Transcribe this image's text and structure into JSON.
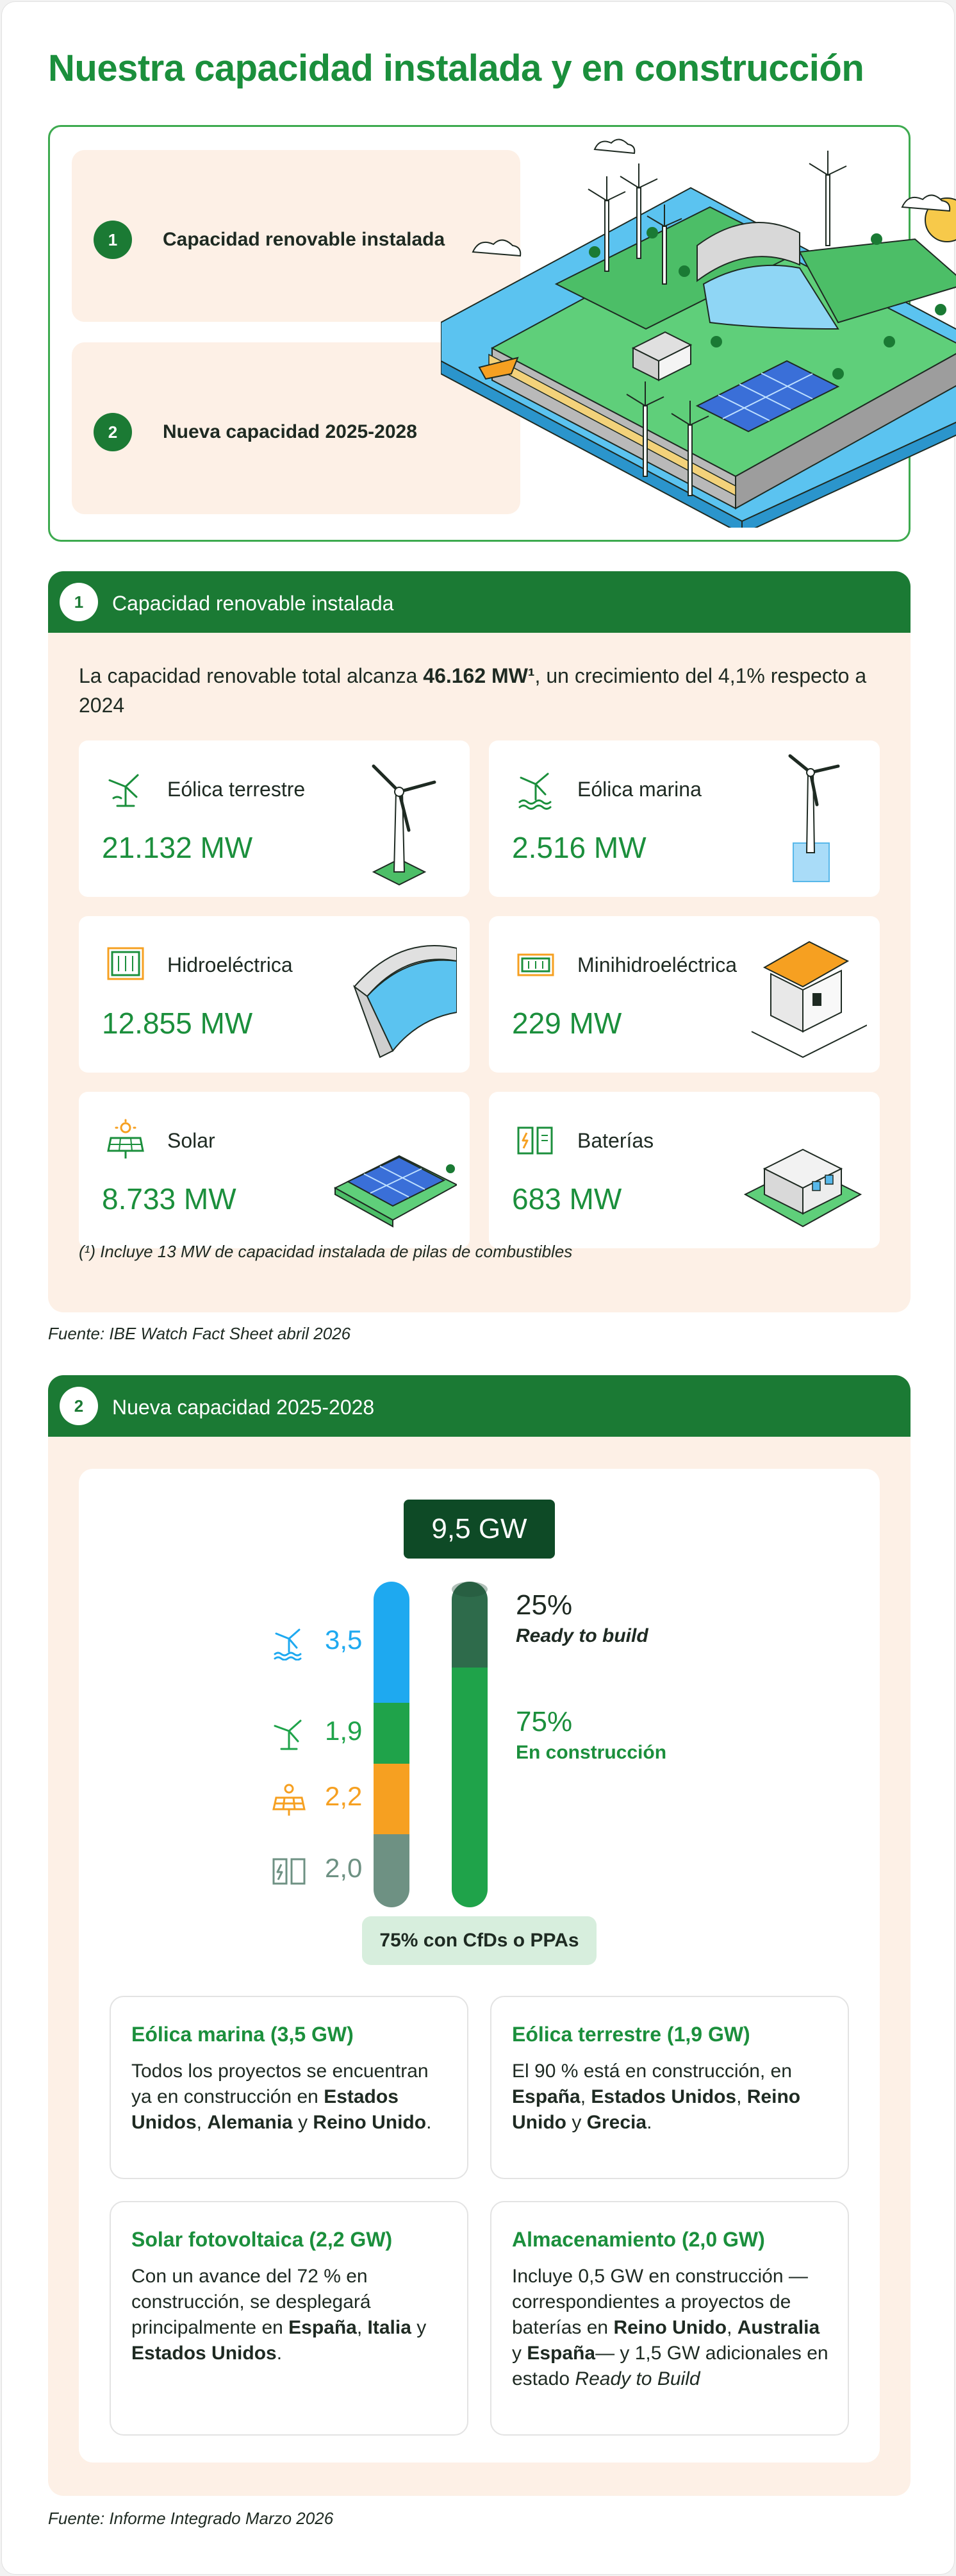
{
  "title": {
    "regular": "Nuestra capacidad ",
    "bold": "instalada y en construcción"
  },
  "hero": {
    "items": [
      {
        "num": "1",
        "label": "Capacidad renovable instalada"
      },
      {
        "num": "2",
        "label": "Nueva capacidad 2025-2028"
      }
    ]
  },
  "installed": {
    "num": "1",
    "heading": "Capacidad renovable instalada",
    "intro_pre": "La capacidad renovable total alcanza ",
    "intro_bold": "46.162 MW¹",
    "intro_post": ", un crecimiento del 4,1% respecto a 2024",
    "cards": [
      {
        "name": "Eólica terrestre",
        "value": "21.132 MW",
        "icon": "onshore-wind-icon"
      },
      {
        "name": "Eólica marina",
        "value": "2.516 MW",
        "icon": "offshore-wind-icon"
      },
      {
        "name": "Hidroeléctrica",
        "value": "12.855 MW",
        "icon": "hydro-icon"
      },
      {
        "name": "Minihidroeléctrica",
        "value": "229 MW",
        "icon": "mini-hydro-icon"
      },
      {
        "name": "Solar",
        "value": "8.733 MW",
        "icon": "solar-icon"
      },
      {
        "name": "Baterías",
        "value": "683 MW",
        "icon": "battery-icon"
      }
    ],
    "footnote": "(¹) Incluye 13 MW de capacidad instalada de pilas de combustibles",
    "source": "Fuente: IBE Watch Fact Sheet abril 2026"
  },
  "newcap": {
    "num": "2",
    "heading": "Nueva capacidad 2025-2028",
    "total": "9,5 GW",
    "cfd": "75% con CfDs o PPAs",
    "source": "Fuente: Informe Integrado Marzo 2026",
    "details": [
      {
        "title": "Eólica marina (3,5 GW)",
        "parts": [
          {
            "t": "Todos los proyectos se encuentran ya en construcción en "
          },
          {
            "t": "Estados Unidos",
            "b": true
          },
          {
            "t": ", "
          },
          {
            "t": "Alemania",
            "b": true
          },
          {
            "t": " y "
          },
          {
            "t": "Reino Unido",
            "b": true
          },
          {
            "t": "."
          }
        ]
      },
      {
        "title": "Eólica terrestre (1,9 GW)",
        "parts": [
          {
            "t": "El 90 % está en construcción, en "
          },
          {
            "t": "España",
            "b": true
          },
          {
            "t": ", "
          },
          {
            "t": "Estados Unidos",
            "b": true
          },
          {
            "t": ", "
          },
          {
            "t": "Reino Unido",
            "b": true
          },
          {
            "t": " y "
          },
          {
            "t": "Grecia",
            "b": true
          },
          {
            "t": "."
          }
        ]
      },
      {
        "title": "Solar fotovoltaica (2,2 GW)",
        "parts": [
          {
            "t": "Con un avance del 72 % en construcción, se desplegará principalmente en "
          },
          {
            "t": "España",
            "b": true
          },
          {
            "t": ", "
          },
          {
            "t": "Italia",
            "b": true
          },
          {
            "t": " y "
          },
          {
            "t": "Estados Unidos",
            "b": true
          },
          {
            "t": "."
          }
        ]
      },
      {
        "title": "Almacenamiento (2,0 GW)",
        "parts": [
          {
            "t": "Incluye 0,5 GW en construcción —correspondientes a proyectos de baterías en "
          },
          {
            "t": "Reino Unido",
            "b": true
          },
          {
            "t": ", "
          },
          {
            "t": "Australia",
            "b": true
          },
          {
            "t": " y "
          },
          {
            "t": "España",
            "b": true
          },
          {
            "t": "— y 1,5 GW adicionales en estado "
          },
          {
            "t": "Ready to Build",
            "i": true
          }
        ]
      }
    ]
  },
  "chart_data": {
    "type": "bar",
    "title": "9,5 GW",
    "unit": "GW",
    "bars": [
      {
        "name": "by-technology",
        "segments": [
          {
            "label": "3,5",
            "value": 3.5,
            "icon": "offshore-wind-icon",
            "color": "#1ea9f0"
          },
          {
            "label": "1,9",
            "value": 1.9,
            "icon": "onshore-wind-icon",
            "color": "#1fa34a"
          },
          {
            "label": "2,2",
            "value": 2.2,
            "icon": "solar-icon",
            "color": "#f6a021"
          },
          {
            "label": "2,0",
            "value": 2.0,
            "icon": "battery-icon",
            "color": "#6e9183"
          }
        ]
      },
      {
        "name": "by-status",
        "segments": [
          {
            "label": "25%",
            "sub": "Ready to build",
            "value": 25,
            "color": "#2e6b4b"
          },
          {
            "label": "75%",
            "sub": "En construcción",
            "value": 75,
            "color": "#1fa34a"
          }
        ]
      }
    ]
  },
  "colors": {
    "brand_green": "#1b7a34",
    "accent_green": "#1b8f3c",
    "dark_green": "#0e4a26",
    "peach": "#fdf0e6"
  }
}
